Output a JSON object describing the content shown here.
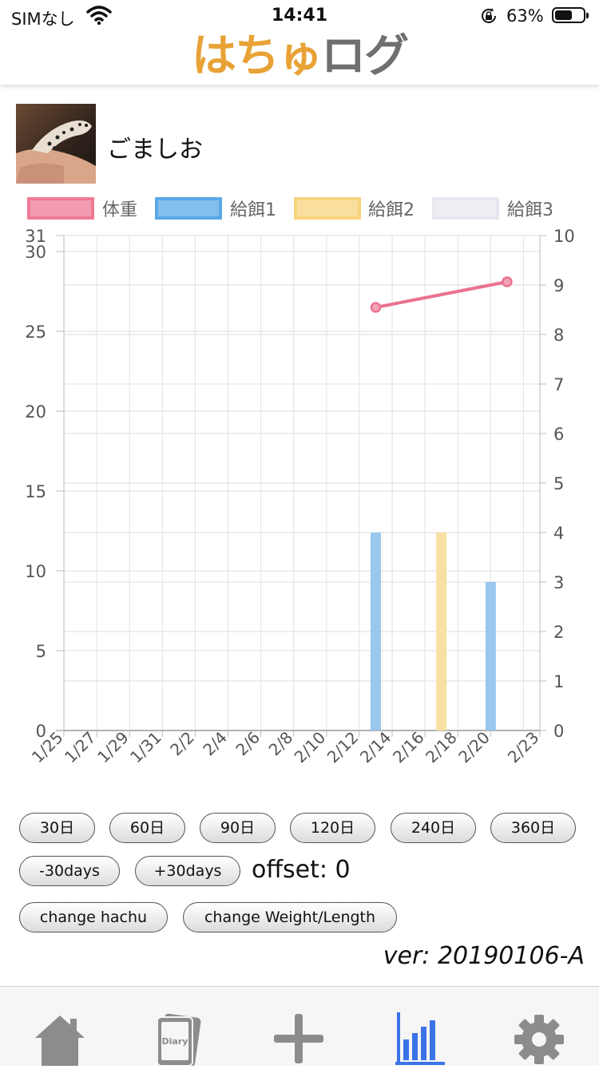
{
  "status_bar": {
    "carrier": "SIMなし",
    "time": "14:41",
    "battery_percent": "63%",
    "battery_level": 0.63
  },
  "header": {
    "logo_part1": "はちゅ",
    "logo_part2": "ログ"
  },
  "profile": {
    "name": "ごましお"
  },
  "chart_data": {
    "type": "bar",
    "legend": {
      "position": "top",
      "items": [
        {
          "label": "体重",
          "color": "#ee7a95"
        },
        {
          "label": "給餌1",
          "color": "#5ba8e6"
        },
        {
          "label": "給餌2",
          "color": "#f7d37d"
        },
        {
          "label": "給餌3",
          "color": "#e6e8ee"
        }
      ]
    },
    "x_ticks": [
      "1/25",
      "1/27",
      "1/29",
      "1/31",
      "2/2",
      "2/4",
      "2/6",
      "2/8",
      "2/10",
      "2/12",
      "2/14",
      "2/16",
      "2/18",
      "2/20",
      "2/23"
    ],
    "y_left": {
      "ticks": [
        "0",
        "5",
        "10",
        "15",
        "20",
        "25",
        "30",
        "31"
      ],
      "min": 0,
      "max": 31
    },
    "y_right": {
      "ticks": [
        "0",
        "1",
        "2",
        "3",
        "4",
        "5",
        "6",
        "7",
        "8",
        "9",
        "10"
      ],
      "min": 0,
      "max": 10
    },
    "grid": true,
    "series": [
      {
        "name": "体重",
        "kind": "line",
        "axis": "left",
        "color": "#ea7190",
        "points": [
          {
            "x": "2/13",
            "y": 26.5
          },
          {
            "x": "2/21",
            "y": 28.1
          }
        ]
      },
      {
        "name": "給餌1",
        "kind": "bar",
        "axis": "right",
        "color": "#99c7ee",
        "points": [
          {
            "x": "2/13",
            "y": 4
          },
          {
            "x": "2/20",
            "y": 3
          }
        ]
      },
      {
        "name": "給餌2",
        "kind": "bar",
        "axis": "right",
        "color": "#f8e0a2",
        "points": [
          {
            "x": "2/17",
            "y": 4
          }
        ]
      },
      {
        "name": "給餌3",
        "kind": "bar",
        "axis": "right",
        "color": "#e6e8ee",
        "points": []
      }
    ]
  },
  "range_buttons": [
    "30日",
    "60日",
    "90日",
    "120日",
    "240日",
    "360日"
  ],
  "offset_controls": {
    "minus": "-30days",
    "plus": "+30days",
    "offset_label": "offset: 0"
  },
  "change_buttons": {
    "hachu": "change hachu",
    "weight_length": "change Weight/Length"
  },
  "version": "ver: 20190106-A",
  "tabs": [
    {
      "name": "home",
      "icon": "home-icon"
    },
    {
      "name": "diary",
      "icon": "diary-icon",
      "label": "Diary"
    },
    {
      "name": "add",
      "icon": "plus-icon"
    },
    {
      "name": "graph",
      "icon": "bar-chart-icon",
      "active": true
    },
    {
      "name": "settings",
      "icon": "gear-icon"
    }
  ]
}
